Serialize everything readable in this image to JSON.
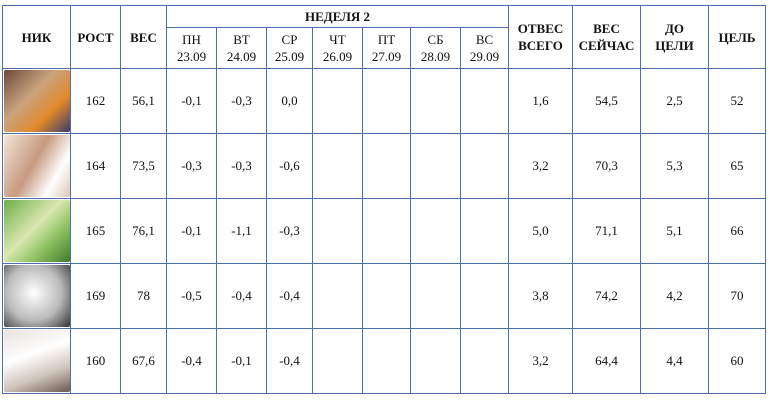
{
  "header": {
    "nick": "НИК",
    "height": "РОСТ",
    "weight": "ВЕС",
    "week": "НЕДЕЛЯ 2",
    "days": [
      {
        "name": "ПН",
        "date": "23.09"
      },
      {
        "name": "ВТ",
        "date": "24.09"
      },
      {
        "name": "СР",
        "date": "25.09"
      },
      {
        "name": "ЧТ",
        "date": "26.09"
      },
      {
        "name": "ПТ",
        "date": "27.09"
      },
      {
        "name": "СБ",
        "date": "28.09"
      },
      {
        "name": "ВС",
        "date": "29.09"
      }
    ],
    "total_loss": [
      "ОТВЕС",
      "ВСЕГО"
    ],
    "weight_now": [
      "ВЕС",
      "СЕЙЧАС"
    ],
    "to_goal": [
      "ДО",
      "ЦЕЛИ"
    ],
    "goal": "ЦЕЛЬ"
  },
  "rows": [
    {
      "height": "162",
      "weight": "56,1",
      "days": [
        "-0,1",
        "-0,3",
        "0,0"
      ],
      "total_loss": "1,6",
      "weight_now": "54,5",
      "to_goal": "2,5",
      "goal": "52"
    },
    {
      "height": "164",
      "weight": "73,5",
      "days": [
        "-0,3",
        "-0,3",
        "-0,6"
      ],
      "total_loss": "3,2",
      "weight_now": "70,3",
      "to_goal": "5,3",
      "goal": "65"
    },
    {
      "height": "165",
      "weight": "76,1",
      "days": [
        "-0,1",
        "-1,1",
        "-0,3"
      ],
      "total_loss": "5,0",
      "weight_now": "71,1",
      "to_goal": "5,1",
      "goal": "66"
    },
    {
      "height": "169",
      "weight": "78",
      "days": [
        "-0,5",
        "-0,4",
        "-0,4"
      ],
      "total_loss": "3,8",
      "weight_now": "74,2",
      "to_goal": "4,2",
      "goal": "70"
    },
    {
      "height": "160",
      "weight": "67,6",
      "days": [
        "-0,4",
        "-0,1",
        "-0,4"
      ],
      "total_loss": "3,2",
      "weight_now": "64,4",
      "to_goal": "4,4",
      "goal": "60"
    }
  ]
}
